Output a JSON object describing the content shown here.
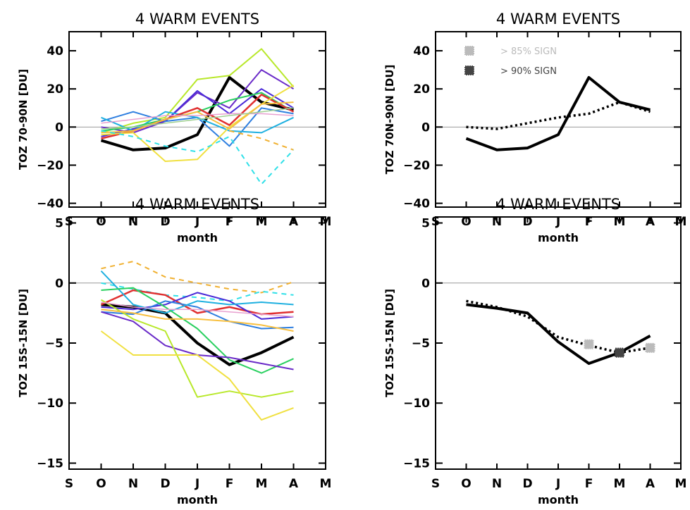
{
  "chart_data": [
    {
      "type": "line",
      "title": "4 WARM EVENTS",
      "xlabel": "month",
      "ylabel": "TOZ 70-90N [DU]",
      "categories": [
        "S",
        "O",
        "N",
        "D",
        "J",
        "F",
        "M",
        "A",
        "M"
      ],
      "ylim": [
        -42,
        50
      ],
      "yticks": [
        -40,
        -20,
        0,
        20,
        40
      ],
      "series": [
        {
          "color": "#000000",
          "width": 4,
          "dash": "",
          "values": [
            null,
            -7,
            -12,
            -11,
            -4,
            26,
            13,
            9,
            null
          ]
        },
        {
          "color": "#b8e82a",
          "width": 2,
          "dash": "",
          "values": [
            null,
            -3,
            2,
            5,
            25,
            27,
            41,
            21,
            null
          ]
        },
        {
          "color": "#6a2bc8",
          "width": 2,
          "dash": "",
          "values": [
            null,
            0,
            -3,
            3,
            18,
            10,
            30,
            20,
            null
          ]
        },
        {
          "color": "#4a2ad8",
          "width": 2,
          "dash": "",
          "values": [
            null,
            -5,
            -1,
            3,
            19,
            7,
            20,
            10,
            null
          ]
        },
        {
          "color": "#2f7fe0",
          "width": 2,
          "dash": "",
          "values": [
            null,
            3,
            8,
            3,
            5,
            -10,
            10,
            7,
            null
          ]
        },
        {
          "color": "#1fb0e0",
          "width": 2,
          "dash": "",
          "values": [
            null,
            5,
            -2,
            8,
            5,
            -2,
            -3,
            5,
            null
          ]
        },
        {
          "color": "#2ad060",
          "width": 2,
          "dash": "",
          "values": [
            null,
            -2,
            0,
            4,
            8,
            14,
            18,
            8,
            null
          ]
        },
        {
          "color": "#e03030",
          "width": 2.5,
          "dash": "",
          "values": [
            null,
            -6,
            -2,
            4,
            10,
            1,
            17,
            8,
            null
          ]
        },
        {
          "color": "#f0e040",
          "width": 2,
          "dash": "",
          "values": [
            null,
            -4,
            -3,
            -18,
            -17,
            0,
            12,
            22,
            null
          ]
        },
        {
          "color": "#f8c040",
          "width": 2,
          "dash": "",
          "values": [
            null,
            -3,
            -2,
            4,
            8,
            -1,
            12,
            13,
            null
          ]
        },
        {
          "color": "#f0b030",
          "width": 2,
          "dash": "7,6",
          "values": [
            null,
            null,
            null,
            null,
            null,
            -2,
            -6,
            -12,
            null
          ]
        },
        {
          "color": "#30e0e8",
          "width": 2,
          "dash": "7,6",
          "values": [
            null,
            -2,
            -5,
            -10,
            -13,
            -5,
            -30,
            -12,
            null
          ]
        },
        {
          "color": "#e8a0d0",
          "width": 1.5,
          "dash": "",
          "values": [
            null,
            2,
            4,
            6,
            6,
            7,
            7,
            6,
            null
          ]
        },
        {
          "color": "#a0d090",
          "width": 1.5,
          "dash": "",
          "values": [
            null,
            -1,
            0,
            2,
            4,
            6,
            8,
            10,
            null
          ]
        }
      ]
    },
    {
      "type": "line",
      "title": "4 WARM EVENTS",
      "xlabel": "month",
      "ylabel": "TOZ 70N-90N [DU]",
      "categories": [
        "S",
        "O",
        "N",
        "D",
        "J",
        "F",
        "M",
        "A",
        "M"
      ],
      "ylim": [
        -42,
        50
      ],
      "yticks": [
        -40,
        -20,
        0,
        20,
        40
      ],
      "legend": [
        {
          "label": "> 85% SIGN",
          "color": "#bbbbbb"
        },
        {
          "label": "> 90% SIGN",
          "color": "#444444"
        }
      ],
      "series": [
        {
          "color": "#000000",
          "width": 4,
          "dash": "",
          "values": [
            null,
            -6,
            -12,
            -11,
            -4,
            26,
            13,
            9,
            null
          ]
        },
        {
          "color": "#000000",
          "width": 3.5,
          "dash": "3,4",
          "values": [
            null,
            0,
            -1,
            2,
            5,
            7,
            13,
            8,
            null
          ]
        }
      ]
    },
    {
      "type": "line",
      "title": "4 WARM EVENTS",
      "xlabel": "month",
      "ylabel": "TOZ 15S-15N [DU]",
      "categories": [
        "S",
        "O",
        "N",
        "D",
        "J",
        "F",
        "M",
        "A",
        "M"
      ],
      "ylim": [
        -15.5,
        5.5
      ],
      "yticks": [
        -15,
        -10,
        -5,
        0,
        5
      ],
      "series": [
        {
          "color": "#000000",
          "width": 4,
          "dash": "",
          "values": [
            null,
            -1.8,
            -2.0,
            -2.5,
            -5.0,
            -6.8,
            -5.8,
            -4.5,
            null
          ]
        },
        {
          "color": "#f0b030",
          "width": 2,
          "dash": "7,6",
          "values": [
            null,
            1.2,
            1.8,
            0.5,
            0.0,
            -0.5,
            -0.8,
            0.1,
            null
          ]
        },
        {
          "color": "#30e0e8",
          "width": 2,
          "dash": "7,6",
          "values": [
            null,
            0.0,
            -0.5,
            -1.0,
            -1.2,
            -1.5,
            -0.7,
            -1.0,
            null
          ]
        },
        {
          "color": "#e03030",
          "width": 2.5,
          "dash": "",
          "values": [
            null,
            -1.8,
            -0.6,
            -1.0,
            -2.5,
            -2.0,
            -2.6,
            -2.4,
            null
          ]
        },
        {
          "color": "#4a2ad8",
          "width": 2,
          "dash": "",
          "values": [
            null,
            -2.0,
            -2.2,
            -1.8,
            -0.8,
            -1.5,
            -3.0,
            -2.8,
            null
          ]
        },
        {
          "color": "#2f7fe0",
          "width": 2,
          "dash": "",
          "values": [
            null,
            -2.4,
            -2.6,
            -1.5,
            -2.0,
            -3.2,
            -3.8,
            -3.7,
            null
          ]
        },
        {
          "color": "#1fb0e0",
          "width": 2,
          "dash": "",
          "values": [
            null,
            1.0,
            -1.8,
            -2.5,
            -1.5,
            -1.8,
            -1.6,
            -1.8,
            null
          ]
        },
        {
          "color": "#2ad060",
          "width": 2,
          "dash": "",
          "values": [
            null,
            -0.6,
            -0.4,
            -2.0,
            -3.8,
            -6.4,
            -7.5,
            -6.3,
            null
          ]
        },
        {
          "color": "#6a2bc8",
          "width": 2,
          "dash": "",
          "values": [
            null,
            -2.4,
            -3.2,
            -5.2,
            -6.0,
            -6.2,
            -6.7,
            -7.2,
            null
          ]
        },
        {
          "color": "#b8e82a",
          "width": 2,
          "dash": "",
          "values": [
            null,
            -1.4,
            -3.0,
            -4.0,
            -9.5,
            -9.0,
            -9.5,
            -9.0,
            null
          ]
        },
        {
          "color": "#f0e040",
          "width": 2,
          "dash": "",
          "values": [
            null,
            -4.0,
            -6.0,
            -6.0,
            -6.0,
            -8.0,
            -11.4,
            -10.4,
            null
          ]
        },
        {
          "color": "#f8c040",
          "width": 2,
          "dash": "",
          "values": [
            null,
            -2.2,
            -2.5,
            -3.0,
            -3.0,
            -3.2,
            -3.5,
            -4.0,
            null
          ]
        },
        {
          "color": "#e8a0d0",
          "width": 1.5,
          "dash": "",
          "values": [
            null,
            -1.6,
            -2.0,
            -2.2,
            -2.2,
            -2.4,
            -2.6,
            -2.8,
            null
          ]
        }
      ]
    },
    {
      "type": "line",
      "title": "4 WARM EVENTS",
      "xlabel": "month",
      "ylabel": "TOZ 15S-15N [DU]",
      "categories": [
        "S",
        "O",
        "N",
        "D",
        "J",
        "F",
        "M",
        "A",
        "M"
      ],
      "ylim": [
        -15.5,
        5.5
      ],
      "yticks": [
        -15,
        -10,
        -5,
        0,
        5
      ],
      "series": [
        {
          "color": "#000000",
          "width": 4,
          "dash": "",
          "values": [
            null,
            -1.8,
            -2.1,
            -2.5,
            -4.9,
            -6.7,
            -5.8,
            -4.4,
            null
          ]
        },
        {
          "color": "#000000",
          "width": 3.5,
          "dash": "3,4",
          "values": [
            null,
            -1.5,
            -2.0,
            -2.8,
            -4.5,
            -5.2,
            -5.8,
            -5.4,
            null
          ]
        }
      ],
      "markers": [
        {
          "x": "F",
          "value": -5.1,
          "color": "#bbbbbb"
        },
        {
          "x": "M",
          "value": -5.8,
          "color": "#444444"
        },
        {
          "x": "A",
          "value": -5.4,
          "color": "#bbbbbb"
        }
      ]
    }
  ]
}
